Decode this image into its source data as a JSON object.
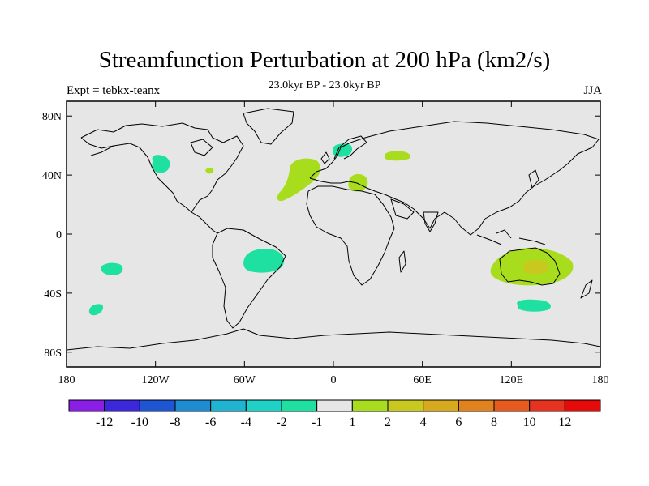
{
  "title": "Streamfunction Perturbation at 200 hPa (km2/s)",
  "subtitle": "23.0kyr BP - 23.0kyr BP",
  "left_label": "Expt = tebkx-teanx",
  "right_label": "JJA",
  "lat_ticks": [
    "80N",
    "40N",
    "0",
    "40S",
    "80S"
  ],
  "lon_ticks": [
    "180",
    "120W",
    "60W",
    "0",
    "60E",
    "120E",
    "180"
  ],
  "colors": {
    "background": "#e6e6e6",
    "pos_1_2": "#a8dd1e",
    "pos_2_4": "#c8c81e",
    "neg_1_2": "#1ee0a0"
  },
  "colorbar": {
    "colors": [
      "#8b1ee6",
      "#3c28dc",
      "#1e55d2",
      "#1e8cd2",
      "#1eb4d2",
      "#1ed2c8",
      "#1ee0a0",
      "#e6e6e6",
      "#a8dd1e",
      "#c8c81e",
      "#d7aa1e",
      "#e1821e",
      "#e65a1e",
      "#e6321e",
      "#e60a0a"
    ],
    "labels": [
      "-12",
      "-10",
      "-8",
      "-6",
      "-4",
      "-2",
      "-1",
      "1",
      "2",
      "4",
      "6",
      "8",
      "10",
      "12"
    ]
  },
  "anomalies": [
    {
      "name": "anomaly-north-america-west",
      "sign": "negative",
      "lon": -120,
      "lat": 46
    },
    {
      "name": "anomaly-great-lakes",
      "sign": "positive",
      "lon": -85,
      "lat": 42
    },
    {
      "name": "anomaly-north-atlantic",
      "sign": "positive",
      "lon": -20,
      "lat": 35
    },
    {
      "name": "anomaly-scandinavia",
      "sign": "negative",
      "lon": 10,
      "lat": 56
    },
    {
      "name": "anomaly-caspian",
      "sign": "positive",
      "lon": 47,
      "lat": 52
    },
    {
      "name": "anomaly-mediterranean",
      "sign": "positive",
      "lon": 17,
      "lat": 35
    },
    {
      "name": "anomaly-south-pacific-east",
      "sign": "negative",
      "lon": -155,
      "lat": -25
    },
    {
      "name": "anomaly-south-pacific-southeast",
      "sign": "negative",
      "lon": -163,
      "lat": -52
    },
    {
      "name": "anomaly-south-atlantic",
      "sign": "negative",
      "lon": -45,
      "lat": -19
    },
    {
      "name": "anomaly-australia",
      "sign": "positive",
      "lon": 133,
      "lat": -24,
      "core_value": "2-4"
    },
    {
      "name": "anomaly-south-of-australia",
      "sign": "negative",
      "lon": 137,
      "lat": -50
    }
  ]
}
